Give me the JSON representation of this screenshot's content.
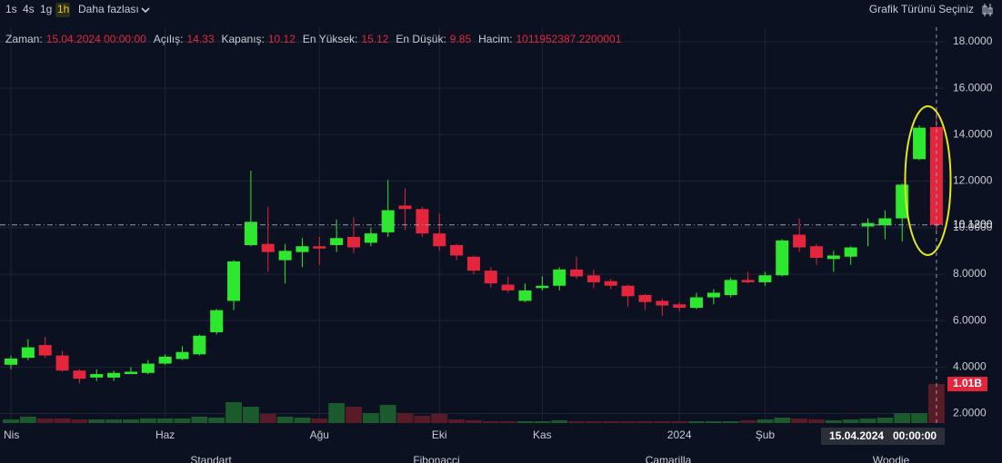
{
  "toolbar": {
    "intervals": [
      "1s",
      "4s",
      "1g",
      "1h"
    ],
    "more": "Daha fazlası",
    "chart_type": "Grafik Türünü Seçiniz"
  },
  "info": [
    {
      "label": "Zaman:",
      "value": "15.04.2024 00:00:00"
    },
    {
      "label": "Açılış:",
      "value": "14.33"
    },
    {
      "label": "Kapanış:",
      "value": "10.12"
    },
    {
      "label": "En Yüksek:",
      "value": "15.12"
    },
    {
      "label": "En Düşük:",
      "value": "9.85"
    },
    {
      "label": "Hacim:",
      "value": "1011952387.2200001"
    }
  ],
  "indicators": [
    "Standart",
    "Fibonacci",
    "Camarilla",
    "Woodie"
  ],
  "chart_data": {
    "type": "candlestick",
    "categories": [
      "Nis",
      null,
      null,
      null,
      null,
      null,
      null,
      null,
      null,
      "Haz",
      null,
      null,
      null,
      null,
      null,
      null,
      null,
      null,
      "Ağu",
      null,
      null,
      null,
      null,
      null,
      null,
      "Eki",
      null,
      null,
      null,
      null,
      null,
      "Kas",
      null,
      null,
      null,
      null,
      null,
      null,
      null,
      "2024",
      null,
      null,
      null,
      null,
      "Şub",
      null,
      null,
      null,
      null,
      null,
      null,
      null,
      null,
      null,
      null
    ],
    "open": [
      4.1,
      4.4,
      4.95,
      4.5,
      3.85,
      3.55,
      3.55,
      3.7,
      3.75,
      4.15,
      4.35,
      4.55,
      5.5,
      6.85,
      9.25,
      9.3,
      8.6,
      8.95,
      9.2,
      9.25,
      9.6,
      9.35,
      9.8,
      10.95,
      10.8,
      9.75,
      9.25,
      8.75,
      8.15,
      7.55,
      6.85,
      7.4,
      7.5,
      8.2,
      7.95,
      7.7,
      7.5,
      7.1,
      6.85,
      6.7,
      6.55,
      7.0,
      7.1,
      7.75,
      7.65,
      7.95,
      9.7,
      9.2,
      8.65,
      8.75,
      10.05,
      10.1,
      10.4,
      12.95,
      14.33
    ],
    "high": [
      4.5,
      5.2,
      5.3,
      4.7,
      3.9,
      3.9,
      3.85,
      4.0,
      4.3,
      4.55,
      4.9,
      5.4,
      6.5,
      8.6,
      12.45,
      10.9,
      9.3,
      9.55,
      9.6,
      10.35,
      10.45,
      10.0,
      12.05,
      11.7,
      10.9,
      10.6,
      9.3,
      8.8,
      8.3,
      7.9,
      7.6,
      7.9,
      8.3,
      8.75,
      8.2,
      7.8,
      7.55,
      7.15,
      6.95,
      6.8,
      7.2,
      7.35,
      7.85,
      8.1,
      8.1,
      9.5,
      10.4,
      9.3,
      9.0,
      9.2,
      10.4,
      10.75,
      11.9,
      14.4,
      15.12
    ],
    "low": [
      3.9,
      4.3,
      4.4,
      3.8,
      3.3,
      3.4,
      3.4,
      3.7,
      3.7,
      4.1,
      4.3,
      4.5,
      5.4,
      6.45,
      9.2,
      8.1,
      7.6,
      8.3,
      8.4,
      8.95,
      8.9,
      9.2,
      9.6,
      9.9,
      9.6,
      9.0,
      8.6,
      8.0,
      7.4,
      7.2,
      6.8,
      7.3,
      7.3,
      7.8,
      7.4,
      7.35,
      6.6,
      6.45,
      6.2,
      6.4,
      6.5,
      6.7,
      7.0,
      7.6,
      7.5,
      7.9,
      8.95,
      8.4,
      8.1,
      8.4,
      9.2,
      9.5,
      9.4,
      12.9,
      9.85
    ],
    "close": [
      4.37,
      4.85,
      4.5,
      3.85,
      3.5,
      3.7,
      3.75,
      3.8,
      4.15,
      4.45,
      4.65,
      5.35,
      6.45,
      8.55,
      10.25,
      8.95,
      9.0,
      9.2,
      9.1,
      9.55,
      9.15,
      9.75,
      10.75,
      10.8,
      9.75,
      9.2,
      8.8,
      8.15,
      7.6,
      7.3,
      7.3,
      7.5,
      8.2,
      7.9,
      7.65,
      7.5,
      7.05,
      6.8,
      6.65,
      6.55,
      7.0,
      7.2,
      7.75,
      7.65,
      7.95,
      9.45,
      9.15,
      8.7,
      8.8,
      9.15,
      10.2,
      10.4,
      11.85,
      14.3,
      10.12
    ],
    "volume": [
      94000000,
      165000000,
      118000000,
      118000000,
      94000000,
      94000000,
      94000000,
      94000000,
      118000000,
      118000000,
      118000000,
      165000000,
      141000000,
      541000000,
      423000000,
      235000000,
      165000000,
      141000000,
      118000000,
      517000000,
      423000000,
      259000000,
      470000000,
      259000000,
      188000000,
      235000000,
      94000000,
      71000000,
      47000000,
      47000000,
      47000000,
      47000000,
      71000000,
      47000000,
      47000000,
      47000000,
      47000000,
      47000000,
      47000000,
      47000000,
      47000000,
      47000000,
      47000000,
      71000000,
      94000000,
      141000000,
      118000000,
      94000000,
      71000000,
      94000000,
      118000000,
      141000000,
      259000000,
      259000000,
      1011952387.22
    ],
    "last_volume": {
      "value": 1011952387.22,
      "label": "1.01B"
    },
    "current_price": {
      "value": 10.12,
      "label": "10.1200"
    },
    "crosshair": {
      "date": "15.04.2024",
      "time": "00:00:00"
    },
    "ylim": [
      1.6,
      18.6
    ],
    "yticks": [
      {
        "value": 2,
        "label": "2.0000"
      },
      {
        "value": 4,
        "label": "4.0000"
      },
      {
        "value": 6,
        "label": "6.0000"
      },
      {
        "value": 8,
        "label": "8.0000"
      },
      {
        "value": 10,
        "label": "10.0000"
      },
      {
        "value": 12,
        "label": "12.0000"
      },
      {
        "value": 14,
        "label": "14.0000"
      },
      {
        "value": 16,
        "label": "16.0000"
      },
      {
        "value": 18,
        "label": "18.0000"
      }
    ],
    "grid": true,
    "up_color": "#2ee830",
    "down_color": "#e3263c",
    "up_volume_color": "#1b5a2c",
    "down_volume_color": "#5a1b29"
  }
}
